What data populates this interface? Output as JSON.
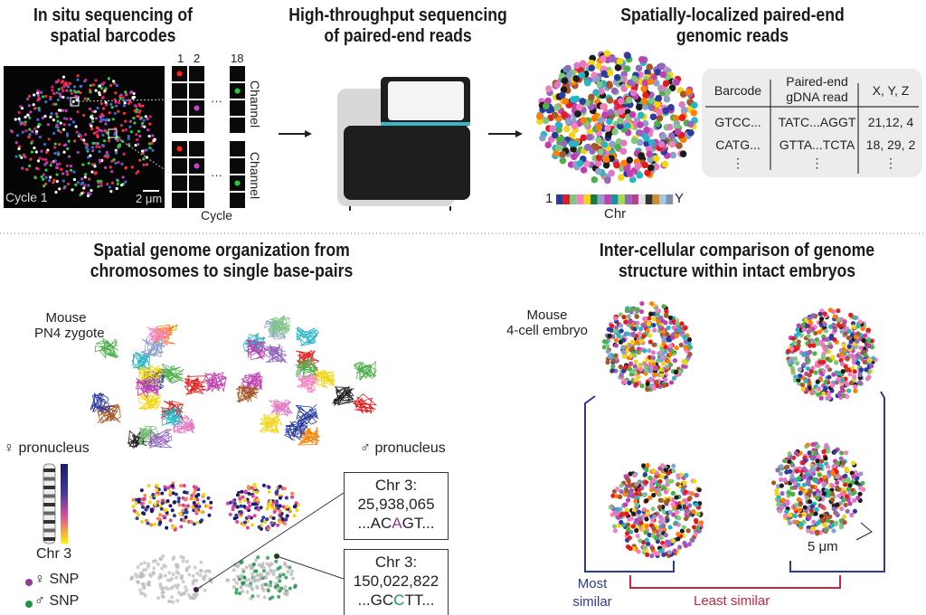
{
  "panels": {
    "p1": {
      "title_l1": "In situ sequencing of",
      "title_l2": "spatial barcodes",
      "image_label": "Cycle 1",
      "scale": "2 μm",
      "cycle_cols": [
        "1",
        "2",
        "18"
      ],
      "ellipsis": "···",
      "channel": "Channel",
      "cycle": "Cycle"
    },
    "p2": {
      "title_l1": "High-throughput sequencing",
      "title_l2": "of paired-end reads"
    },
    "p3": {
      "title_l1": "Spatially-localized paired-end",
      "title_l2": "genomic reads",
      "chr_start": "1",
      "chr_end": "Y",
      "chr_label": "Chr",
      "table": {
        "headers": [
          "Barcode",
          "Paired-end gDNA read",
          "X, Y, Z"
        ],
        "rows": [
          [
            "GTCC...",
            "TATC...AGGT",
            "21,12, 4"
          ],
          [
            "CATG...",
            "GTTA...TCTA",
            "18, 29, 2"
          ],
          [
            "⋮",
            "⋮",
            "⋮"
          ]
        ]
      }
    },
    "p4": {
      "title_l1": "Spatial genome organization from",
      "title_l2": "chromosomes to single base-pairs",
      "species_l1": "Mouse",
      "species_l2": "PN4 zygote",
      "female": "♀ pronucleus",
      "male": "♂ pronucleus",
      "chr_label": "Chr 3",
      "snp_female": "♀ SNP",
      "snp_male": "♂ SNP",
      "box1": {
        "l1": "Chr 3:",
        "l2": "25,938,065",
        "seq_pre": "...AC",
        "seq_base": "A",
        "seq_post": "GT..."
      },
      "box2": {
        "l1": "Chr 3:",
        "l2": "150,022,822",
        "seq_pre": "...GC",
        "seq_base": "C",
        "seq_post": "TT..."
      }
    },
    "p5": {
      "title_l1": "Inter-cellular comparison of genome",
      "title_l2": "structure within intact embryos",
      "species_l1": "Mouse",
      "species_l2": "4-cell embryo",
      "scale": "5 μm",
      "most_similar_l1": "Most",
      "most_similar_l2": "similar",
      "least_similar": "Least similar"
    }
  },
  "colors": {
    "most_similar": "#2b3990",
    "least_similar": "#c8283c",
    "female_snp": "#8e3a98",
    "male_snp": "#1f9448",
    "instrument_accent": "#3bb6c8"
  }
}
